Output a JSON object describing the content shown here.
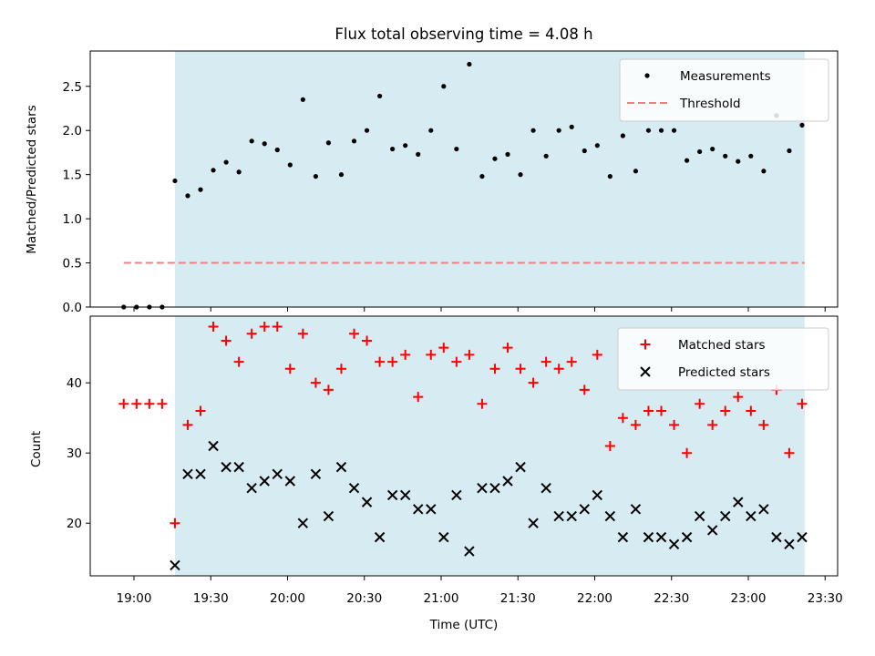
{
  "figure": {
    "title": "Flux total observing time = 4.08 h",
    "xlabel": "Time (UTC)",
    "x_tick_labels": [
      "19:00",
      "19:30",
      "20:00",
      "20:30",
      "21:00",
      "21:30",
      "22:00",
      "22:30",
      "23:00",
      "23:30"
    ],
    "shaded_region": {
      "start": "19:16",
      "end": "23:22",
      "color": "#add8e6"
    }
  },
  "chart_data": [
    {
      "type": "scatter",
      "ylabel": "Matched/Predicted stars",
      "ylim": [
        0,
        2.9
      ],
      "y_ticks": [
        0.0,
        0.5,
        1.0,
        1.5,
        2.0,
        2.5
      ],
      "y_tick_labels": [
        "0.0",
        "0.5",
        "1.0",
        "1.5",
        "2.0",
        "2.5"
      ],
      "legend": {
        "placement": "top-right",
        "entries": [
          "Measurements",
          "Threshold"
        ]
      },
      "threshold": {
        "name": "Threshold",
        "y": 0.5,
        "x_start": "18:56",
        "x_end": "23:22",
        "color": "#f08080",
        "style": "dashed"
      },
      "series": [
        {
          "name": "Measurements",
          "color": "#000000",
          "marker": "dot",
          "x": [
            "18:56",
            "19:01",
            "19:06",
            "19:11",
            "19:16",
            "19:21",
            "19:26",
            "19:31",
            "19:36",
            "19:41",
            "19:46",
            "19:51",
            "19:56",
            "20:01",
            "20:06",
            "20:11",
            "20:16",
            "20:21",
            "20:26",
            "20:31",
            "20:36",
            "20:41",
            "20:46",
            "20:51",
            "20:56",
            "21:01",
            "21:06",
            "21:11",
            "21:16",
            "21:21",
            "21:26",
            "21:31",
            "21:36",
            "21:41",
            "21:46",
            "21:51",
            "21:56",
            "22:01",
            "22:06",
            "22:11",
            "22:16",
            "22:21",
            "22:26",
            "22:31",
            "22:36",
            "22:41",
            "22:46",
            "22:51",
            "22:56",
            "23:01",
            "23:06",
            "23:11",
            "23:16",
            "23:21"
          ],
          "y": [
            0,
            0,
            0,
            0,
            1.43,
            1.26,
            1.33,
            1.55,
            1.64,
            1.53,
            1.88,
            1.85,
            1.78,
            1.61,
            2.35,
            1.48,
            1.86,
            1.5,
            1.88,
            2.0,
            2.39,
            1.79,
            1.83,
            1.73,
            2.0,
            2.5,
            1.79,
            2.75,
            1.48,
            1.68,
            1.73,
            1.5,
            2.0,
            1.71,
            2.0,
            2.04,
            1.77,
            1.83,
            1.48,
            1.94,
            1.54,
            2.0,
            2.0,
            2.0,
            1.66,
            1.76,
            1.79,
            1.71,
            1.65,
            1.71,
            1.54,
            2.17,
            1.77,
            2.06
          ]
        }
      ]
    },
    {
      "type": "scatter",
      "ylabel": "Count",
      "ylim": [
        12.5,
        49.5
      ],
      "y_ticks": [
        20,
        30,
        40
      ],
      "y_tick_labels": [
        "20",
        "30",
        "40"
      ],
      "legend": {
        "placement": "top-right",
        "entries": [
          "Matched stars",
          "Predicted stars"
        ]
      },
      "series": [
        {
          "name": "Matched stars",
          "color": "#ff0000",
          "marker": "plus",
          "x": [
            "18:56",
            "19:01",
            "19:06",
            "19:11",
            "19:16",
            "19:21",
            "19:26",
            "19:31",
            "19:36",
            "19:41",
            "19:46",
            "19:51",
            "19:56",
            "20:01",
            "20:06",
            "20:11",
            "20:16",
            "20:21",
            "20:26",
            "20:31",
            "20:36",
            "20:41",
            "20:46",
            "20:51",
            "20:56",
            "21:01",
            "21:06",
            "21:11",
            "21:16",
            "21:21",
            "21:26",
            "21:31",
            "21:36",
            "21:41",
            "21:46",
            "21:51",
            "21:56",
            "22:01",
            "22:06",
            "22:11",
            "22:16",
            "22:21",
            "22:26",
            "22:31",
            "22:36",
            "22:41",
            "22:46",
            "22:51",
            "22:56",
            "23:01",
            "23:06",
            "23:11",
            "23:16",
            "23:21"
          ],
          "y": [
            37,
            37,
            37,
            37,
            20,
            34,
            36,
            48,
            46,
            43,
            47,
            48,
            48,
            42,
            47,
            40,
            39,
            42,
            47,
            46,
            43,
            43,
            44,
            38,
            44,
            45,
            43,
            44,
            37,
            42,
            45,
            42,
            40,
            43,
            42,
            43,
            39,
            44,
            31,
            35,
            34,
            36,
            36,
            34,
            30,
            37,
            34,
            36,
            38,
            36,
            34,
            39,
            30,
            37
          ]
        },
        {
          "name": "Predicted stars",
          "color": "#000000",
          "marker": "x",
          "x": [
            "19:16",
            "19:21",
            "19:26",
            "19:31",
            "19:36",
            "19:41",
            "19:46",
            "19:51",
            "19:56",
            "20:01",
            "20:06",
            "20:11",
            "20:16",
            "20:21",
            "20:26",
            "20:31",
            "20:36",
            "20:41",
            "20:46",
            "20:51",
            "20:56",
            "21:01",
            "21:06",
            "21:11",
            "21:16",
            "21:21",
            "21:26",
            "21:31",
            "21:36",
            "21:41",
            "21:46",
            "21:51",
            "21:56",
            "22:01",
            "22:06",
            "22:11",
            "22:16",
            "22:21",
            "22:26",
            "22:31",
            "22:36",
            "22:41",
            "22:46",
            "22:51",
            "22:56",
            "23:01",
            "23:06",
            "23:11",
            "23:16",
            "23:21"
          ],
          "y": [
            14,
            27,
            27,
            31,
            28,
            28,
            25,
            26,
            27,
            26,
            20,
            27,
            21,
            28,
            25,
            23,
            18,
            24,
            24,
            22,
            22,
            18,
            24,
            16,
            25,
            25,
            26,
            28,
            20,
            25,
            21,
            21,
            22,
            24,
            21,
            18,
            22,
            18,
            18,
            17,
            18,
            21,
            19,
            21,
            23,
            21,
            22,
            18,
            17,
            18
          ]
        }
      ]
    }
  ]
}
